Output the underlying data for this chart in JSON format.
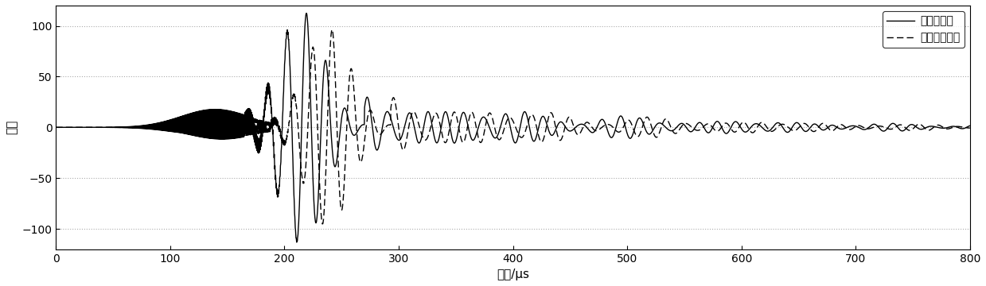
{
  "title": "",
  "xlabel": "时间/μs",
  "ylabel": "幅值",
  "xlim": [
    0,
    800
  ],
  "ylim": [
    -120,
    120
  ],
  "yticks": [
    -100,
    -50,
    0,
    50,
    100
  ],
  "xticks": [
    0,
    100,
    200,
    300,
    400,
    500,
    600,
    700,
    800
  ],
  "legend1": "无缺陷位置",
  "legend2": "内含孔洞位置",
  "line_color": "#000000",
  "grid_color": "#888888",
  "figsize": [
    12.39,
    3.6
  ],
  "dpi": 100
}
